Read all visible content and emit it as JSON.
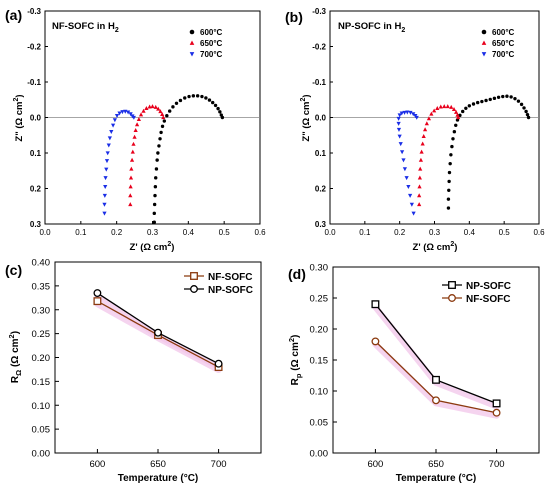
{
  "panels": [
    {
      "letter": "(a)",
      "title_main": "NF-SOFC in H",
      "title_sub": "2"
    },
    {
      "letter": "(b)",
      "title_main": "NP-SOFC in H",
      "title_sub": "2"
    },
    {
      "letter": "(c)"
    },
    {
      "letter": "(d)"
    }
  ],
  "nyquist_axes": {
    "ylabel_main": "Z\" (Ω cm",
    "ylabel_sup": "2",
    "ylabel_end": ")",
    "xlabel_main": "Z' (Ω cm",
    "xlabel_sup": "2",
    "xlabel_end": ")"
  },
  "temp_axes": {
    "xlabel": "Temperature (°C)",
    "c_ylabel_main": "R",
    "c_ylabel_sub": "Ω",
    "c_ylabel_rest": " (Ω cm",
    "c_ylabel_sup": "2",
    "c_ylabel_end": ")",
    "d_ylabel_main": "R",
    "d_ylabel_sub": "p",
    "d_ylabel_rest": " (Ω cm",
    "d_ylabel_sup": "2",
    "d_ylabel_end": ")"
  },
  "colors": {
    "600": "#000000",
    "650": "#e8001c",
    "700": "#1a2ee6",
    "np_line": "#000000",
    "nf_line": "#8b3a0f",
    "shadow": "#f2c6ea"
  },
  "chart_data": [
    {
      "panel": "a",
      "type": "scatter",
      "xlim": [
        0.0,
        0.6
      ],
      "ylim": [
        -0.3,
        0.3
      ],
      "y_inverted": true,
      "xticks": [
        "0.0",
        "0.1",
        "0.2",
        "0.3",
        "0.4",
        "0.5",
        "0.6"
      ],
      "yticks": [
        "-0.3",
        "-0.2",
        "-0.1",
        "0.0",
        "0.1",
        "0.2",
        "0.3"
      ],
      "series": [
        {
          "name": "600°C",
          "marker": "circle",
          "color": "#000000",
          "points": [
            [
              0.305,
              0.295
            ],
            [
              0.305,
              0.27
            ],
            [
              0.306,
              0.245
            ],
            [
              0.307,
              0.22
            ],
            [
              0.308,
              0.195
            ],
            [
              0.309,
              0.17
            ],
            [
              0.311,
              0.145
            ],
            [
              0.313,
              0.12
            ],
            [
              0.315,
              0.1
            ],
            [
              0.318,
              0.08
            ],
            [
              0.321,
              0.06
            ],
            [
              0.324,
              0.042
            ],
            [
              0.328,
              0.025
            ],
            [
              0.333,
              0.01
            ],
            [
              0.34,
              -0.005
            ],
            [
              0.348,
              -0.018
            ],
            [
              0.357,
              -0.03
            ],
            [
              0.367,
              -0.04
            ],
            [
              0.378,
              -0.048
            ],
            [
              0.39,
              -0.055
            ],
            [
              0.402,
              -0.059
            ],
            [
              0.414,
              -0.061
            ],
            [
              0.426,
              -0.061
            ],
            [
              0.438,
              -0.059
            ],
            [
              0.449,
              -0.055
            ],
            [
              0.459,
              -0.049
            ],
            [
              0.468,
              -0.042
            ],
            [
              0.476,
              -0.034
            ],
            [
              0.483,
              -0.025
            ],
            [
              0.488,
              -0.016
            ],
            [
              0.492,
              -0.007
            ],
            [
              0.495,
              0.0
            ]
          ]
        },
        {
          "name": "650°C",
          "marker": "triangle-up",
          "color": "#e8001c",
          "points": [
            [
              0.238,
              0.245
            ],
            [
              0.238,
              0.22
            ],
            [
              0.239,
              0.195
            ],
            [
              0.24,
              0.17
            ],
            [
              0.241,
              0.145
            ],
            [
              0.243,
              0.12
            ],
            [
              0.245,
              0.097
            ],
            [
              0.247,
              0.075
            ],
            [
              0.25,
              0.055
            ],
            [
              0.253,
              0.036
            ],
            [
              0.257,
              0.02
            ],
            [
              0.262,
              0.005
            ],
            [
              0.268,
              -0.008
            ],
            [
              0.275,
              -0.018
            ],
            [
              0.283,
              -0.026
            ],
            [
              0.292,
              -0.03
            ],
            [
              0.3,
              -0.031
            ],
            [
              0.309,
              -0.029
            ],
            [
              0.316,
              -0.024
            ],
            [
              0.322,
              -0.017
            ],
            [
              0.327,
              -0.009
            ],
            [
              0.33,
              0.0
            ]
          ]
        },
        {
          "name": "700°C",
          "marker": "triangle-down",
          "color": "#1a2ee6",
          "points": [
            [
              0.166,
              0.27
            ],
            [
              0.166,
              0.245
            ],
            [
              0.167,
              0.22
            ],
            [
              0.168,
              0.195
            ],
            [
              0.169,
              0.17
            ],
            [
              0.171,
              0.146
            ],
            [
              0.173,
              0.122
            ],
            [
              0.175,
              0.1
            ],
            [
              0.178,
              0.078
            ],
            [
              0.181,
              0.058
            ],
            [
              0.185,
              0.04
            ],
            [
              0.19,
              0.022
            ],
            [
              0.195,
              0.007
            ],
            [
              0.201,
              -0.005
            ],
            [
              0.208,
              -0.012
            ],
            [
              0.216,
              -0.016
            ],
            [
              0.224,
              -0.017
            ],
            [
              0.232,
              -0.015
            ],
            [
              0.239,
              -0.01
            ],
            [
              0.244,
              -0.004
            ],
            [
              0.248,
              0.0
            ]
          ]
        }
      ]
    },
    {
      "panel": "b",
      "type": "scatter",
      "xlim": [
        0.0,
        0.6
      ],
      "ylim": [
        -0.3,
        0.3
      ],
      "y_inverted": true,
      "xticks": [
        "0.0",
        "0.1",
        "0.2",
        "0.3",
        "0.4",
        "0.5",
        "0.6"
      ],
      "yticks": [
        "-0.3",
        "-0.2",
        "-0.1",
        "0.0",
        "0.1",
        "0.2",
        "0.3"
      ],
      "series": [
        {
          "name": "600°C",
          "marker": "circle",
          "color": "#000000",
          "points": [
            [
              0.34,
              0.255
            ],
            [
              0.34,
              0.23
            ],
            [
              0.341,
              0.205
            ],
            [
              0.342,
              0.18
            ],
            [
              0.343,
              0.155
            ],
            [
              0.345,
              0.13
            ],
            [
              0.347,
              0.105
            ],
            [
              0.35,
              0.082
            ],
            [
              0.353,
              0.06
            ],
            [
              0.357,
              0.04
            ],
            [
              0.361,
              0.022
            ],
            [
              0.366,
              0.007
            ],
            [
              0.373,
              -0.006
            ],
            [
              0.381,
              -0.017
            ],
            [
              0.39,
              -0.026
            ],
            [
              0.4,
              -0.033
            ],
            [
              0.412,
              -0.038
            ],
            [
              0.424,
              -0.042
            ],
            [
              0.436,
              -0.045
            ],
            [
              0.448,
              -0.048
            ],
            [
              0.46,
              -0.051
            ],
            [
              0.472,
              -0.054
            ],
            [
              0.484,
              -0.057
            ],
            [
              0.496,
              -0.059
            ],
            [
              0.508,
              -0.06
            ],
            [
              0.52,
              -0.058
            ],
            [
              0.531,
              -0.053
            ],
            [
              0.541,
              -0.046
            ],
            [
              0.55,
              -0.037
            ],
            [
              0.557,
              -0.027
            ],
            [
              0.563,
              -0.017
            ],
            [
              0.567,
              -0.008
            ],
            [
              0.57,
              0.0
            ]
          ]
        },
        {
          "name": "650°C",
          "marker": "triangle-up",
          "color": "#e8001c",
          "points": [
            [
              0.256,
              0.245
            ],
            [
              0.256,
              0.22
            ],
            [
              0.257,
              0.195
            ],
            [
              0.258,
              0.17
            ],
            [
              0.259,
              0.145
            ],
            [
              0.261,
              0.12
            ],
            [
              0.263,
              0.097
            ],
            [
              0.266,
              0.074
            ],
            [
              0.269,
              0.053
            ],
            [
              0.273,
              0.034
            ],
            [
              0.278,
              0.017
            ],
            [
              0.284,
              0.003
            ],
            [
              0.291,
              -0.01
            ],
            [
              0.299,
              -0.019
            ],
            [
              0.308,
              -0.026
            ],
            [
              0.318,
              -0.03
            ],
            [
              0.328,
              -0.031
            ],
            [
              0.338,
              -0.031
            ],
            [
              0.348,
              -0.029
            ],
            [
              0.356,
              -0.023
            ],
            [
              0.362,
              -0.015
            ],
            [
              0.366,
              -0.007
            ],
            [
              0.368,
              0.0
            ]
          ]
        },
        {
          "name": "700°C",
          "marker": "triangle-down",
          "color": "#1a2ee6",
          "points": [
            [
              0.24,
              0.27
            ],
            [
              0.235,
              0.245
            ],
            [
              0.23,
              0.22
            ],
            [
              0.225,
              0.195
            ],
            [
              0.22,
              0.17
            ],
            [
              0.215,
              0.145
            ],
            [
              0.211,
              0.12
            ],
            [
              0.207,
              0.097
            ],
            [
              0.203,
              0.074
            ],
            [
              0.2,
              0.053
            ],
            [
              0.198,
              0.034
            ],
            [
              0.197,
              0.017
            ],
            [
              0.197,
              0.003
            ],
            [
              0.2,
              -0.007
            ],
            [
              0.206,
              -0.012
            ],
            [
              0.214,
              -0.014
            ],
            [
              0.222,
              -0.015
            ],
            [
              0.231,
              -0.014
            ],
            [
              0.239,
              -0.01
            ],
            [
              0.245,
              -0.005
            ],
            [
              0.249,
              0.0
            ]
          ]
        }
      ]
    },
    {
      "panel": "c",
      "type": "line",
      "x": [
        600,
        650,
        700
      ],
      "xlim": [
        565,
        735
      ],
      "ylim": [
        0.0,
        0.4
      ],
      "xticks": [
        "600",
        "650",
        "700"
      ],
      "yticks": [
        "0.00",
        "0.05",
        "0.10",
        "0.15",
        "0.20",
        "0.25",
        "0.30",
        "0.35",
        "0.40"
      ],
      "series": [
        {
          "name": "NF-SOFC",
          "marker": "square",
          "color": "#8b3a0f",
          "values": [
            0.318,
            0.247,
            0.18
          ]
        },
        {
          "name": "NP-SOFC",
          "marker": "circle",
          "color": "#000000",
          "values": [
            0.335,
            0.252,
            0.187
          ]
        }
      ],
      "legend_order": [
        "NF-SOFC",
        "NP-SOFC"
      ],
      "legend": "top-right"
    },
    {
      "panel": "d",
      "type": "line",
      "x": [
        600,
        650,
        700
      ],
      "xlim": [
        565,
        735
      ],
      "ylim": [
        0.0,
        0.3
      ],
      "xticks": [
        "600",
        "650",
        "700"
      ],
      "yticks": [
        "0.00",
        "0.05",
        "0.10",
        "0.15",
        "0.20",
        "0.25",
        "0.30"
      ],
      "series": [
        {
          "name": "NP-SOFC",
          "marker": "square",
          "color": "#000000",
          "values": [
            0.24,
            0.118,
            0.08
          ]
        },
        {
          "name": "NF-SOFC",
          "marker": "circle",
          "color": "#8b3a0f",
          "values": [
            0.18,
            0.085,
            0.065
          ]
        }
      ],
      "legend_order": [
        "NP-SOFC",
        "NF-SOFC"
      ],
      "legend": "top-right"
    }
  ]
}
